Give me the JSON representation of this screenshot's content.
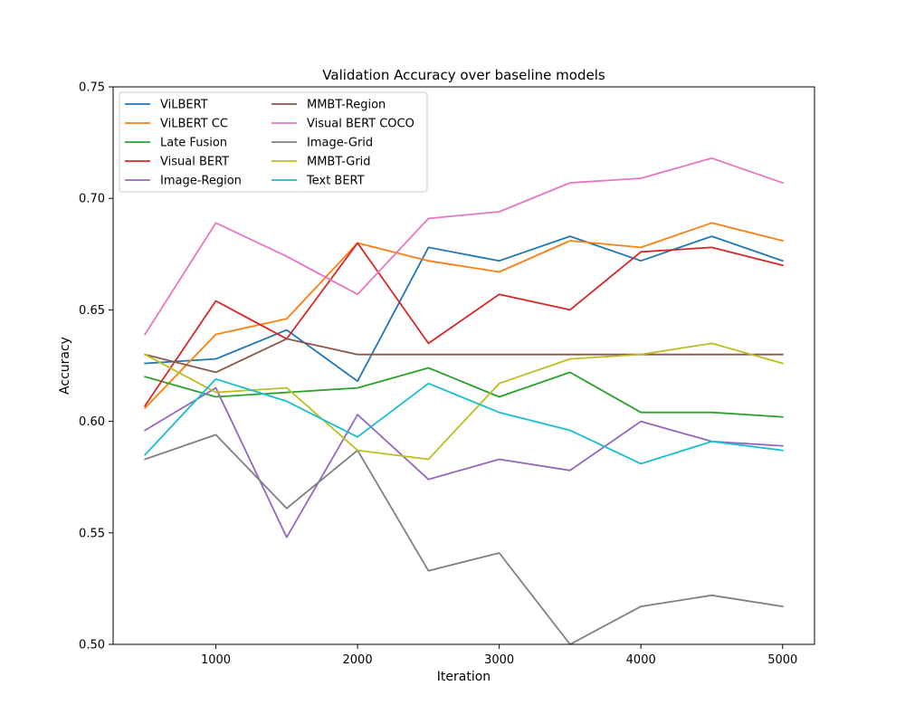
{
  "chart_data": {
    "type": "line",
    "title": "Validation Accuracy over baseline models",
    "xlabel": "Iteration",
    "ylabel": "Accuracy",
    "xlim": [
      275,
      5225
    ],
    "ylim": [
      0.5,
      0.75
    ],
    "xticks": [
      1000,
      2000,
      3000,
      4000,
      5000
    ],
    "yticks": [
      0.5,
      0.55,
      0.6,
      0.65,
      0.7,
      0.75
    ],
    "legend": "top-left",
    "legend_columns": 2,
    "x": [
      500,
      1000,
      1500,
      2000,
      2500,
      3000,
      3500,
      4000,
      4500,
      5000
    ],
    "series": [
      {
        "name": "ViLBERT",
        "color": "#1f77b4",
        "values": [
          0.626,
          0.628,
          0.641,
          0.618,
          0.678,
          0.672,
          0.683,
          0.672,
          0.683,
          0.672
        ]
      },
      {
        "name": "ViLBERT CC",
        "color": "#ff7f0e",
        "values": [
          0.606,
          0.639,
          0.646,
          0.68,
          0.672,
          0.667,
          0.681,
          0.678,
          0.689,
          0.681
        ]
      },
      {
        "name": "Late Fusion",
        "color": "#2ca02c",
        "values": [
          0.62,
          0.611,
          0.613,
          0.615,
          0.624,
          0.611,
          0.622,
          0.604,
          0.604,
          0.602
        ]
      },
      {
        "name": "Visual BERT",
        "color": "#d62728",
        "values": [
          0.607,
          0.654,
          0.637,
          0.68,
          0.635,
          0.657,
          0.65,
          0.676,
          0.678,
          0.67
        ]
      },
      {
        "name": "Image-Region",
        "color": "#9467bd",
        "values": [
          0.596,
          0.615,
          0.548,
          0.603,
          0.574,
          0.583,
          0.578,
          0.6,
          0.591,
          0.589
        ]
      },
      {
        "name": "MMBT-Region",
        "color": "#8c564b",
        "values": [
          0.63,
          0.622,
          0.637,
          0.63,
          0.63,
          0.63,
          0.63,
          0.63,
          0.63,
          0.63
        ]
      },
      {
        "name": "Visual BERT COCO",
        "color": "#e377c2",
        "values": [
          0.639,
          0.689,
          0.674,
          0.657,
          0.691,
          0.694,
          0.707,
          0.709,
          0.718,
          0.707
        ]
      },
      {
        "name": "Image-Grid",
        "color": "#7f7f7f",
        "values": [
          0.583,
          0.594,
          0.561,
          0.587,
          0.533,
          0.541,
          0.5,
          0.517,
          0.522,
          0.517
        ]
      },
      {
        "name": "MMBT-Grid",
        "color": "#bcbd22",
        "values": [
          0.63,
          0.613,
          0.615,
          0.587,
          0.583,
          0.617,
          0.628,
          0.63,
          0.635,
          0.626
        ]
      },
      {
        "name": "Text BERT",
        "color": "#17becf",
        "values": [
          0.585,
          0.619,
          0.609,
          0.593,
          0.617,
          0.604,
          0.596,
          0.581,
          0.591,
          0.587
        ]
      }
    ]
  }
}
